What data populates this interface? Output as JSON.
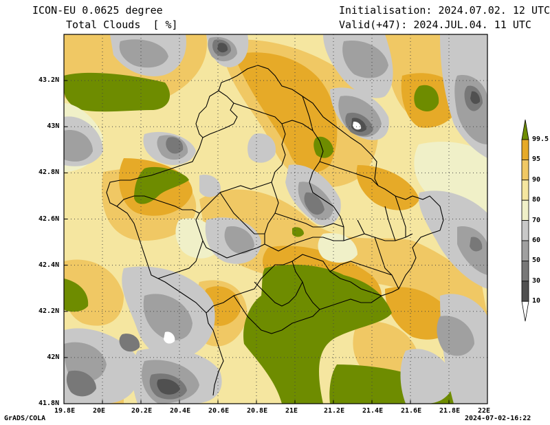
{
  "header": {
    "model": "ICON-EU 0.0625 degree",
    "field": "Total Clouds  [ %]",
    "init": "Initialisation: 2024.07.02. 12 UTC",
    "valid": "Valid(+47): 2024.JUL.04. 11 UTC"
  },
  "axes": {
    "lat_labels": [
      "43.2N",
      "43N",
      "42.8N",
      "42.6N",
      "42.4N",
      "42.2N",
      "42N",
      "41.8N"
    ],
    "lat_values": [
      43.2,
      43.0,
      42.8,
      42.6,
      42.4,
      42.2,
      42.0,
      41.8
    ],
    "lon_labels": [
      "19.8E",
      "20E",
      "20.2E",
      "20.4E",
      "20.6E",
      "20.8E",
      "21E",
      "21.2E",
      "21.4E",
      "21.6E",
      "21.8E",
      "22E"
    ],
    "lon_values": [
      19.8,
      20.0,
      20.2,
      20.4,
      20.6,
      20.8,
      21.0,
      21.2,
      21.4,
      21.6,
      21.8,
      22.0
    ],
    "lat_range": [
      41.8,
      43.4
    ],
    "lon_range": [
      19.8,
      22.0
    ]
  },
  "legend": {
    "labels": [
      "99.5",
      "95",
      "90",
      "80",
      "70",
      "60",
      "50",
      "30",
      "10"
    ],
    "colors": [
      "#6e8c00",
      "#e6aa28",
      "#f0c864",
      "#f5e6a0",
      "#f0f0c8",
      "#c8c8c8",
      "#a0a0a0",
      "#787878",
      "#505050",
      "#ffffff"
    ]
  },
  "footer": {
    "left": "GrADS/COLA",
    "right": "2024-07-02-16:22"
  }
}
